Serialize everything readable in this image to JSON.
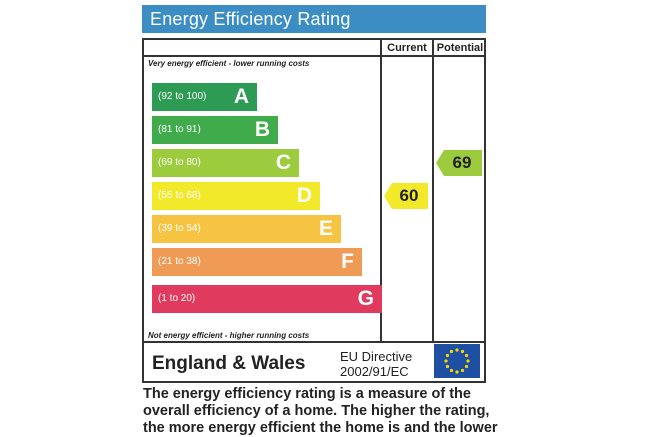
{
  "title": "Energy Efficiency Rating",
  "columns": {
    "current": "Current",
    "potential": "Potential"
  },
  "notes": {
    "top": "Very energy efficient - lower running costs",
    "bottom": "Not energy efficient - higher running costs"
  },
  "bands": [
    {
      "range": "(92 to 100)",
      "letter": "A",
      "color": "#2e9b55"
    },
    {
      "range": "(81 to 91)",
      "letter": "B",
      "color": "#3fab4a"
    },
    {
      "range": "(69 to 80)",
      "letter": "C",
      "color": "#9ccc3e"
    },
    {
      "range": "(55 to 68)",
      "letter": "D",
      "color": "#f2e92b"
    },
    {
      "range": "(39 to 54)",
      "letter": "E",
      "color": "#f6c343"
    },
    {
      "range": "(21 to 38)",
      "letter": "F",
      "color": "#ef9a55"
    },
    {
      "range": "(1 to 20)",
      "letter": "G",
      "color": "#e03b5f"
    }
  ],
  "current": {
    "value": "60",
    "band": "D",
    "color": "#f2e92b"
  },
  "potential": {
    "value": "69",
    "band": "C",
    "color": "#9ccc3e"
  },
  "footer": {
    "region": "England & Wales",
    "directive_line1": "EU Directive",
    "directive_line2": "2002/91/EC",
    "flag_icon": "eu-flag-icon"
  },
  "description": "The energy efficiency rating is a measure of the overall efficiency of a home. The higher the rating, the more energy efficient the home is and the lower"
}
